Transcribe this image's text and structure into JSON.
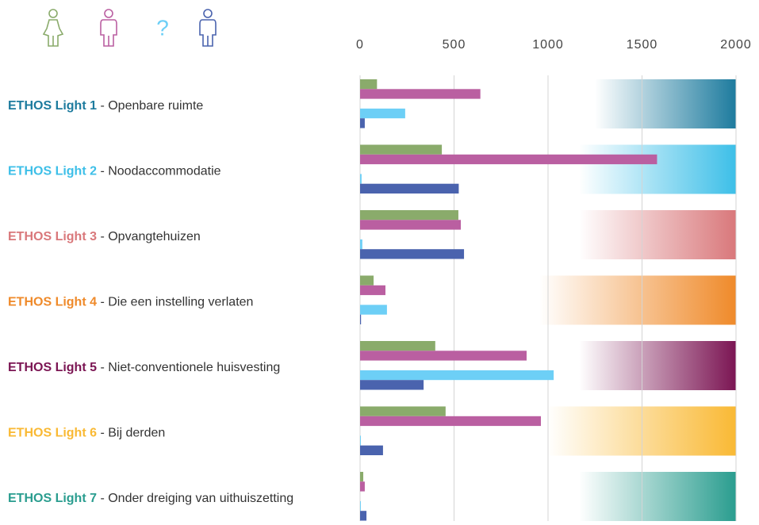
{
  "chart_data": {
    "type": "bar",
    "orientation": "horizontal",
    "categories": [
      "ETHOS Light 1",
      "ETHOS Light 2",
      "ETHOS Light 3",
      "ETHOS Light 4",
      "ETHOS Light 5",
      "ETHOS Light 6",
      "ETHOS Light 7"
    ],
    "category_descriptions": [
      "Openbare ruimte",
      "Noodaccommodatie",
      "Opvangtehuizen",
      "Die een instelling verlaten",
      "Niet-conventionele huisvesting",
      "Bij derden",
      "Onder dreiging van uithuiszetting"
    ],
    "category_separator": " - ",
    "category_colors": [
      "#1d7b9e",
      "#3dbfe8",
      "#d9787b",
      "#ef8a2a",
      "#7b1553",
      "#f9b934",
      "#2a9d8f"
    ],
    "series": [
      {
        "color": "#8aab6b",
        "values": [
          90,
          435,
          523,
          72,
          400,
          455,
          17
        ]
      },
      {
        "color": "#ba5fa1",
        "values": [
          640,
          1580,
          536,
          135,
          886,
          962,
          25
        ]
      },
      {
        "name": "?",
        "color": "#6dcff6",
        "values": [
          240,
          8,
          12,
          143,
          1030,
          4,
          4
        ]
      },
      {
        "color": "#4a63ae",
        "values": [
          25,
          525,
          553,
          5,
          338,
          122,
          34
        ]
      }
    ],
    "xlim": [
      0,
      2000
    ],
    "xticks": [
      0,
      500,
      1000,
      1500,
      2000
    ],
    "grid": true
  }
}
